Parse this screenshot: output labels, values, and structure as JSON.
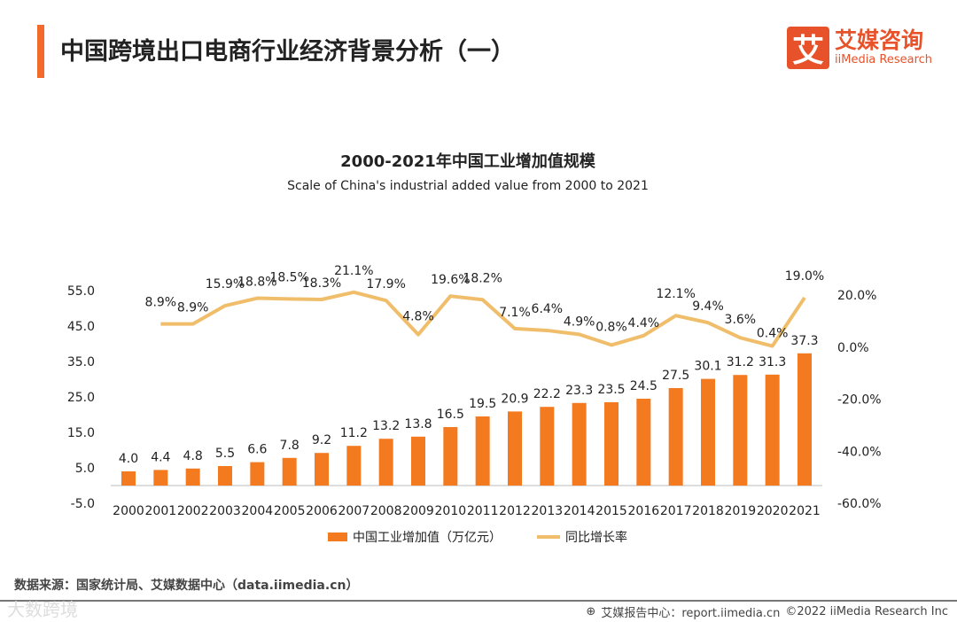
{
  "header": {
    "title": "中国跨境出口电商行业经济背景分析（一）",
    "logo_mark": "艾",
    "logo_cn": "艾媒咨询",
    "logo_en": "iiMedia Research"
  },
  "source": "数据来源：国家统计局、艾媒数据中心（data.iimedia.cn）",
  "watermark": "大数跨境",
  "footer": {
    "report": "艾媒报告中心：report.iimedia.cn",
    "copyright": "©2022  iiMedia Research  Inc"
  },
  "colors": {
    "bar": "#f47a1f",
    "line": "#f0be6b",
    "accent": "#f26b2a"
  },
  "chart_data": {
    "type": "bar+line",
    "title": "2000-2021年中国工业增加值规模",
    "subtitle": "Scale of China's industrial added value from 2000 to 2021",
    "categories": [
      "2000",
      "2001",
      "2002",
      "2003",
      "2004",
      "2005",
      "2006",
      "2007",
      "2008",
      "2009",
      "2010",
      "2011",
      "2012",
      "2013",
      "2014",
      "2015",
      "2016",
      "2017",
      "2018",
      "2019",
      "2020",
      "2021"
    ],
    "series": [
      {
        "name": "中国工业增加值（万亿元）",
        "type": "bar",
        "axis": "left",
        "values": [
          4.0,
          4.4,
          4.8,
          5.5,
          6.6,
          7.8,
          9.2,
          11.2,
          13.2,
          13.8,
          16.5,
          19.5,
          20.9,
          22.2,
          23.3,
          23.5,
          24.5,
          27.5,
          30.1,
          31.2,
          31.3,
          37.3
        ]
      },
      {
        "name": "同比增长率",
        "type": "line",
        "axis": "right",
        "values": [
          null,
          8.9,
          8.9,
          15.9,
          18.8,
          18.5,
          18.3,
          21.1,
          17.9,
          4.8,
          19.6,
          18.2,
          7.1,
          6.4,
          4.9,
          0.8,
          4.4,
          12.1,
          9.4,
          3.6,
          0.4,
          19.0
        ]
      }
    ],
    "left_axis": {
      "ylim": [
        -5,
        55
      ],
      "ticks": [
        "55.0",
        "45.0",
        "35.0",
        "25.0",
        "15.0",
        "5.0",
        "-5.0"
      ]
    },
    "right_axis": {
      "ylim": [
        -60,
        20
      ],
      "ticks": [
        "20.0%",
        "0.0%",
        "-20.0%",
        "-40.0%",
        "-60.0%"
      ]
    },
    "legend": "bottom"
  }
}
